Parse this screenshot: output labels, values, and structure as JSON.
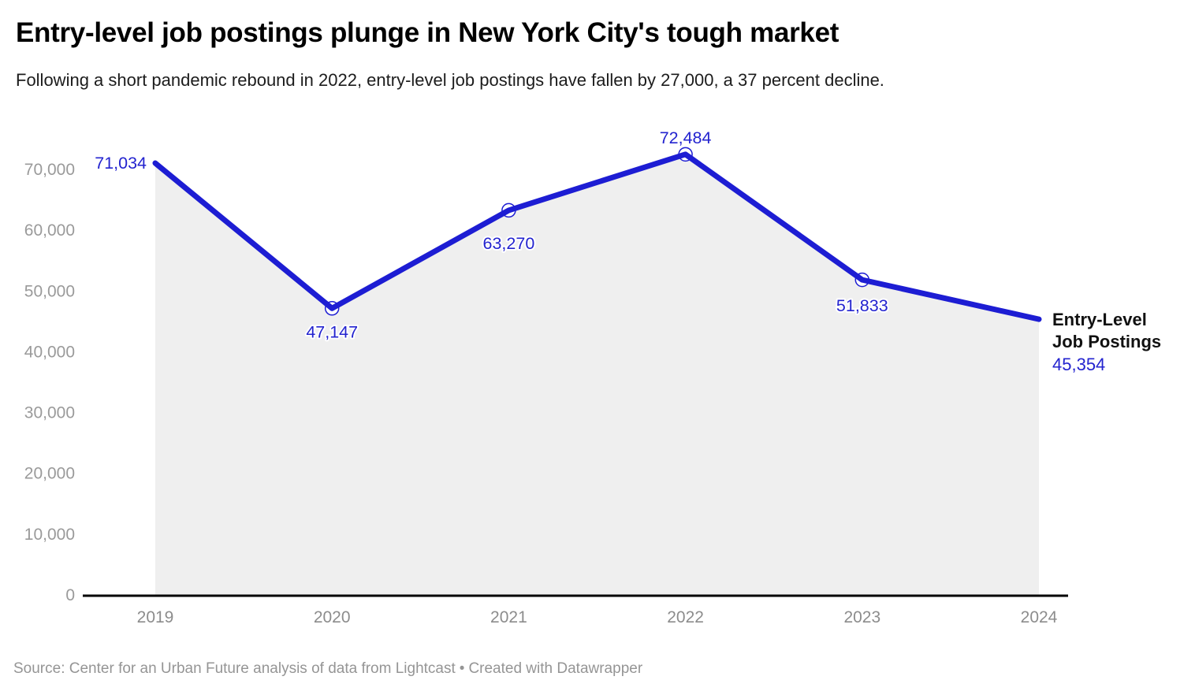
{
  "header": {
    "title": "Entry-level job postings plunge in New York City's tough market",
    "subtitle": "Following a short pandemic rebound in 2022, entry-level job postings have fallen by 27,000, a 37 percent decline."
  },
  "chart_data": {
    "type": "area",
    "title": "Entry-level job postings plunge in New York City's tough market",
    "categories": [
      "2019",
      "2020",
      "2021",
      "2022",
      "2023",
      "2024"
    ],
    "series": [
      {
        "name": "Entry-Level Job Postings",
        "values": [
          71034,
          47147,
          63270,
          72484,
          51833,
          45354
        ]
      }
    ],
    "data_labels": [
      "71,034",
      "47,147",
      "63,270",
      "72,484",
      "51,833",
      "45,354"
    ],
    "xlabel": "",
    "ylabel": "",
    "ylim": [
      0,
      75000
    ],
    "yticks": [
      0,
      10000,
      20000,
      30000,
      40000,
      50000,
      60000,
      70000
    ],
    "ytick_labels": [
      "0",
      "10,000",
      "20,000",
      "30,000",
      "40,000",
      "50,000",
      "60,000",
      "70,000"
    ],
    "grid": "off",
    "legend": "none",
    "end_annotation": {
      "line1": "Entry-Level",
      "line2": "Job Postings",
      "value": "45,354"
    },
    "colors": {
      "line": "#1d1dd3",
      "label_blue": "#2323cf",
      "area_fill": "#efefef",
      "axis": "#000000",
      "y_tick_label": "#9a9a9a",
      "x_tick_label": "#8c8c8c"
    }
  },
  "footer": {
    "source": "Source: Center for an Urban Future analysis of data from Lightcast",
    "separator": "•",
    "credit": "Created with Datawrapper"
  }
}
